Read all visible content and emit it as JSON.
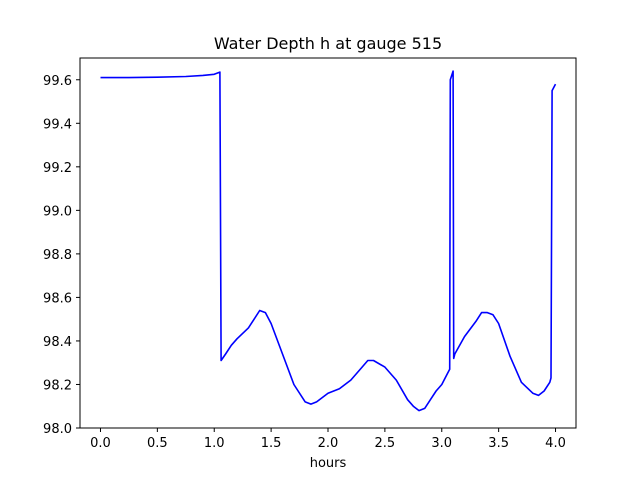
{
  "chart_data": {
    "type": "line",
    "title": "Water Depth h at gauge 515",
    "xlabel": "hours",
    "ylabel": "",
    "xlim": [
      -0.18,
      4.18
    ],
    "ylim": [
      98.0,
      99.7
    ],
    "xticks": [
      0.0,
      0.5,
      1.0,
      1.5,
      2.0,
      2.5,
      3.0,
      3.5,
      4.0
    ],
    "xtick_labels": [
      "0.0",
      "0.5",
      "1.0",
      "1.5",
      "2.0",
      "2.5",
      "3.0",
      "3.5",
      "4.0"
    ],
    "yticks": [
      98.0,
      98.2,
      98.4,
      98.6,
      98.8,
      99.0,
      99.2,
      99.4,
      99.6
    ],
    "ytick_labels": [
      "98.0",
      "98.2",
      "98.4",
      "98.6",
      "98.8",
      "99.0",
      "99.2",
      "99.4",
      "99.6"
    ],
    "grid": false,
    "series": [
      {
        "color": "#0000ff",
        "x": [
          0.0,
          0.25,
          0.5,
          0.75,
          0.9,
          1.0,
          1.05,
          1.06,
          1.1,
          1.15,
          1.2,
          1.3,
          1.35,
          1.4,
          1.45,
          1.5,
          1.6,
          1.7,
          1.8,
          1.85,
          1.9,
          2.0,
          2.05,
          2.1,
          2.2,
          2.3,
          2.35,
          2.4,
          2.5,
          2.6,
          2.7,
          2.75,
          2.8,
          2.85,
          2.9,
          2.95,
          3.0,
          3.05,
          3.07,
          3.075,
          3.1,
          3.105,
          3.115,
          3.2,
          3.3,
          3.35,
          3.4,
          3.45,
          3.5,
          3.6,
          3.7,
          3.8,
          3.85,
          3.9,
          3.95,
          3.96,
          3.97,
          4.0
        ],
        "y": [
          99.61,
          99.61,
          99.612,
          99.615,
          99.62,
          99.625,
          99.635,
          98.31,
          98.34,
          98.38,
          98.41,
          98.46,
          98.5,
          98.54,
          98.53,
          98.48,
          98.34,
          98.2,
          98.12,
          98.11,
          98.12,
          98.16,
          98.17,
          98.18,
          98.22,
          98.28,
          98.31,
          98.31,
          98.28,
          98.22,
          98.13,
          98.1,
          98.08,
          98.09,
          98.13,
          98.17,
          98.2,
          98.25,
          98.27,
          99.6,
          99.64,
          98.32,
          98.34,
          98.42,
          98.49,
          98.53,
          98.53,
          98.52,
          98.48,
          98.33,
          98.21,
          98.16,
          98.15,
          98.17,
          98.21,
          98.23,
          99.55,
          99.58
        ]
      }
    ]
  }
}
